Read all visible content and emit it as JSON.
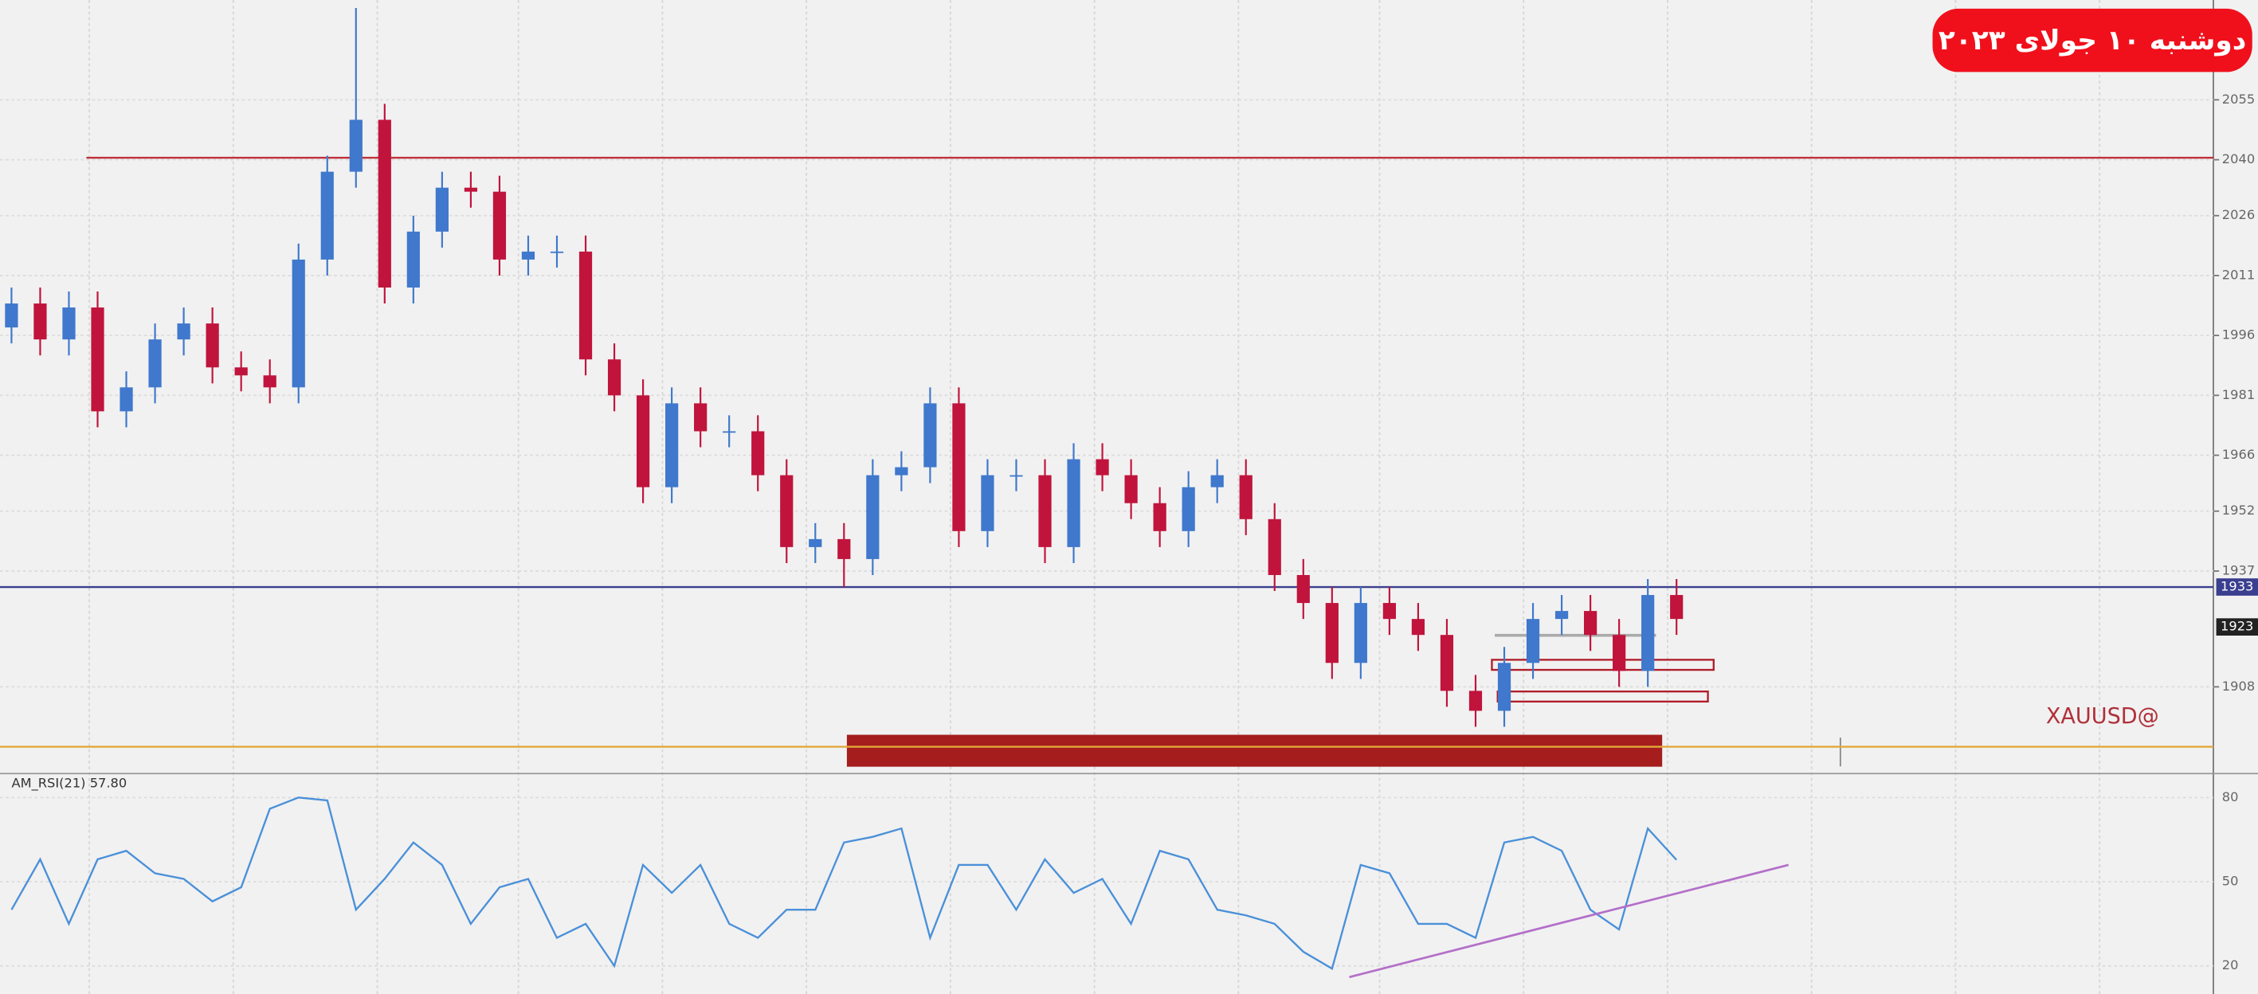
{
  "header": {
    "date_badge": "دوشنبه ۱۰ جولای ۲۰۲۳"
  },
  "chart_data": [
    {
      "type": "candlestick",
      "watermark": "XAUUSD@",
      "bull_color": "#3f78cc",
      "bear_color": "#c0143c",
      "open": [
        1998,
        2004,
        1995,
        2003,
        1977,
        1983,
        1995,
        1999,
        1988,
        1986,
        1983,
        2015,
        2037,
        2050,
        2008,
        2022,
        2033,
        2032,
        2015,
        2017,
        2017,
        1990,
        1981,
        1958,
        1979,
        1972,
        1972,
        1961,
        1943,
        1945,
        1940,
        1961,
        1963,
        1979,
        1947,
        1961,
        1961,
        1943,
        1965,
        1961,
        1954,
        1947,
        1958,
        1961,
        1950,
        1936,
        1929,
        1914,
        1929,
        1925,
        1921,
        1907,
        1902,
        1914,
        1925,
        1927,
        1921,
        1912,
        1931
      ],
      "high": [
        2008,
        2008,
        2007,
        2007,
        1987,
        1999,
        2003,
        2003,
        1992,
        1990,
        2019,
        2041,
        2078,
        2054,
        2026,
        2037,
        2037,
        2036,
        2021,
        2021,
        2021,
        1994,
        1985,
        1983,
        1983,
        1976,
        1976,
        1965,
        1949,
        1949,
        1965,
        1967,
        1983,
        1983,
        1965,
        1965,
        1965,
        1969,
        1969,
        1965,
        1958,
        1962,
        1965,
        1965,
        1954,
        1940,
        1933,
        1933,
        1933,
        1929,
        1925,
        1911,
        1918,
        1929,
        1931,
        1931,
        1925,
        1935,
        1935
      ],
      "low": [
        1994,
        1991,
        1991,
        1973,
        1973,
        1979,
        1991,
        1984,
        1982,
        1979,
        1979,
        2011,
        2033,
        2004,
        2004,
        2018,
        2028,
        2011,
        2011,
        2013,
        1986,
        1977,
        1954,
        1954,
        1968,
        1968,
        1957,
        1939,
        1939,
        1933,
        1936,
        1957,
        1959,
        1943,
        1943,
        1957,
        1939,
        1939,
        1957,
        1950,
        1943,
        1943,
        1954,
        1946,
        1932,
        1925,
        1910,
        1910,
        1921,
        1917,
        1903,
        1898,
        1898,
        1910,
        1921,
        1917,
        1908,
        1908,
        1921
      ],
      "close": [
        2004,
        1995,
        2003,
        1977,
        1983,
        1995,
        1999,
        1988,
        1986,
        1983,
        2015,
        2037,
        2050,
        2008,
        2022,
        2033,
        2032,
        2015,
        2017,
        2017,
        1990,
        1981,
        1958,
        1979,
        1972,
        1972,
        1961,
        1943,
        1945,
        1940,
        1961,
        1963,
        1979,
        1947,
        1961,
        1961,
        1943,
        1965,
        1961,
        1954,
        1947,
        1958,
        1961,
        1950,
        1936,
        1929,
        1914,
        1929,
        1925,
        1921,
        1907,
        1902,
        1914,
        1925,
        1927,
        1921,
        1912,
        1931,
        1925
      ],
      "xlim": [
        -0.4,
        76.7
      ],
      "ylim": [
        1887,
        2080
      ],
      "yticks": [
        2055,
        2040,
        2026,
        2011,
        1996,
        1981,
        1966,
        1952,
        1937,
        1908
      ],
      "grid": true,
      "levels": [
        {
          "value": 2040.5,
          "color": "#c0303a"
        },
        {
          "value": 1933,
          "color": "#3a3f8f"
        },
        {
          "value": 1893,
          "color": "#e0a93a"
        }
      ],
      "price_markers": [
        1933,
        1923
      ],
      "zone": {
        "x": [
          29.1,
          57.5
        ],
        "y": [
          1888,
          1896
        ],
        "color": "#a51d1d"
      }
    },
    {
      "type": "line",
      "title": "AM_RSI(21) 57.80",
      "color": "#4a90d9",
      "values": [
        40,
        58,
        35,
        58,
        61,
        53,
        51,
        43,
        48,
        76,
        80,
        79,
        40,
        51,
        64,
        56,
        35,
        48,
        51,
        30,
        35,
        20,
        56,
        46,
        56,
        35,
        30,
        40,
        40,
        64,
        66,
        69,
        30,
        56,
        56,
        40,
        58,
        46,
        51,
        35,
        61,
        58,
        40,
        38,
        35,
        25,
        19,
        56,
        53,
        35,
        35,
        30,
        64,
        66,
        61,
        40,
        33,
        69,
        57.8
      ],
      "xlim": [
        -0.4,
        76.7
      ],
      "ylim": [
        11,
        87
      ],
      "yticks": [
        80,
        50,
        20
      ],
      "trendline": {
        "x": [
          46.6,
          61.9
        ],
        "y": [
          16,
          56
        ],
        "color": "#b36fc9"
      }
    }
  ]
}
